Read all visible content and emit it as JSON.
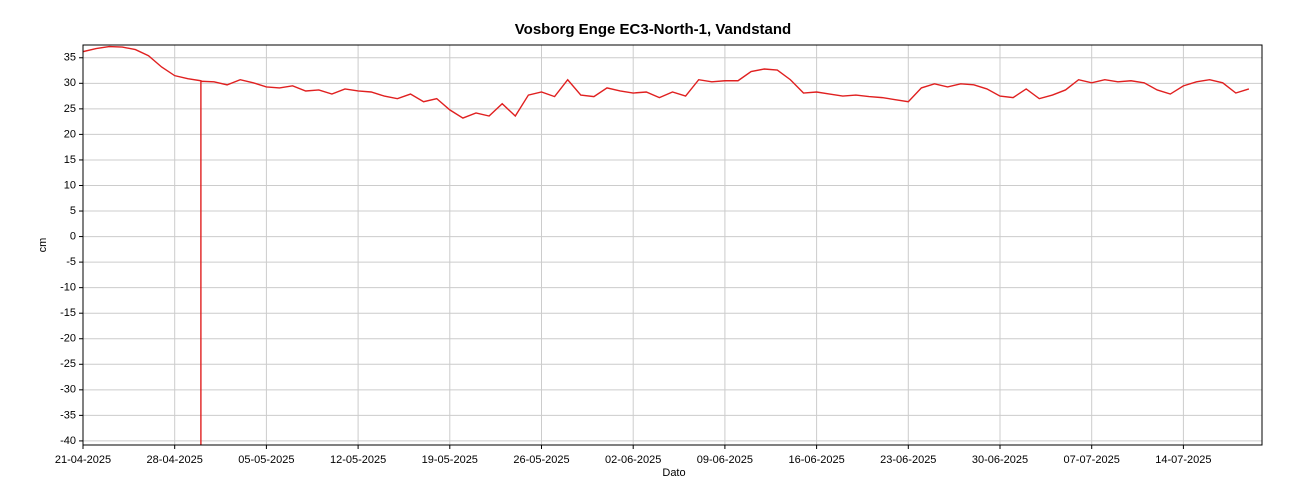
{
  "chart_data": {
    "type": "line",
    "title": "Vosborg Enge EC3-North-1, Vandstand",
    "x_label": "Dato",
    "y_label": "cm",
    "color": "#e02020",
    "x": [
      "21-04-2025",
      "22-04-2025",
      "23-04-2025",
      "24-04-2025",
      "25-04-2025",
      "26-04-2025",
      "27-04-2025",
      "28-04-2025",
      "29-04-2025",
      "30-04-2025",
      "30-04-2025",
      "30-04-2025",
      "01-05-2025",
      "02-05-2025",
      "03-05-2025",
      "04-05-2025",
      "05-05-2025",
      "06-05-2025",
      "07-05-2025",
      "08-05-2025",
      "09-05-2025",
      "10-05-2025",
      "11-05-2025",
      "12-05-2025",
      "13-05-2025",
      "14-05-2025",
      "15-05-2025",
      "16-05-2025",
      "17-05-2025",
      "18-05-2025",
      "19-05-2025",
      "20-05-2025",
      "21-05-2025",
      "22-05-2025",
      "23-05-2025",
      "24-05-2025",
      "25-05-2025",
      "26-05-2025",
      "27-05-2025",
      "28-05-2025",
      "29-05-2025",
      "30-05-2025",
      "31-05-2025",
      "01-06-2025",
      "02-06-2025",
      "03-06-2025",
      "04-06-2025",
      "05-06-2025",
      "06-06-2025",
      "07-06-2025",
      "08-06-2025",
      "09-06-2025",
      "10-06-2025",
      "11-06-2025",
      "12-06-2025",
      "13-06-2025",
      "14-06-2025",
      "15-06-2025",
      "16-06-2025",
      "17-06-2025",
      "18-06-2025",
      "19-06-2025",
      "20-06-2025",
      "21-06-2025",
      "22-06-2025",
      "23-06-2025",
      "24-06-2025",
      "25-06-2025",
      "26-06-2025",
      "27-06-2025",
      "28-06-2025",
      "29-06-2025",
      "30-06-2025",
      "01-07-2025",
      "02-07-2025",
      "03-07-2025",
      "04-07-2025",
      "05-07-2025",
      "06-07-2025",
      "07-07-2025",
      "08-07-2025",
      "09-07-2025",
      "10-07-2025",
      "11-07-2025",
      "12-07-2025",
      "13-07-2025",
      "14-07-2025",
      "15-07-2025",
      "16-07-2025",
      "17-07-2025",
      "18-07-2025",
      "19-07-2025"
    ],
    "values": [
      36.2,
      36.8,
      37.2,
      37.1,
      36.6,
      35.4,
      33.2,
      31.5,
      30.9,
      30.5,
      -40.8,
      30.4,
      30.3,
      29.7,
      30.7,
      30.1,
      29.3,
      29.1,
      29.5,
      28.5,
      28.7,
      27.9,
      28.9,
      28.5,
      28.3,
      27.5,
      27.0,
      27.9,
      26.4,
      27.0,
      24.8,
      23.2,
      24.2,
      23.6,
      26.0,
      23.6,
      27.7,
      28.3,
      27.4,
      30.7,
      27.7,
      27.4,
      29.1,
      28.5,
      28.1,
      28.3,
      27.2,
      28.3,
      27.5,
      30.7,
      30.3,
      30.5,
      30.5,
      32.3,
      32.8,
      32.6,
      30.7,
      28.1,
      28.3,
      27.9,
      27.5,
      27.7,
      27.4,
      27.2,
      26.8,
      26.4,
      29.1,
      29.9,
      29.3,
      29.9,
      29.7,
      28.9,
      27.5,
      27.2,
      28.9,
      27.0,
      27.7,
      28.7,
      30.7,
      30.1,
      30.7,
      30.3,
      30.5,
      30.1,
      28.7,
      27.9,
      29.5,
      30.3,
      30.7,
      30.1,
      28.1,
      28.9
    ],
    "xlim": [
      "21-04-2025",
      "20-07-2025"
    ],
    "xticks": [
      "21-04-2025",
      "28-04-2025",
      "05-05-2025",
      "12-05-2025",
      "19-05-2025",
      "26-05-2025",
      "02-06-2025",
      "09-06-2025",
      "16-06-2025",
      "23-06-2025",
      "30-06-2025",
      "07-07-2025",
      "14-07-2025"
    ],
    "ylim": [
      -40.8,
      37.5
    ],
    "yticks": [
      35,
      30,
      25,
      20,
      15,
      10,
      5,
      0,
      -5,
      -10,
      -15,
      -20,
      -25,
      -30,
      -35,
      -40
    ],
    "grid": true
  }
}
